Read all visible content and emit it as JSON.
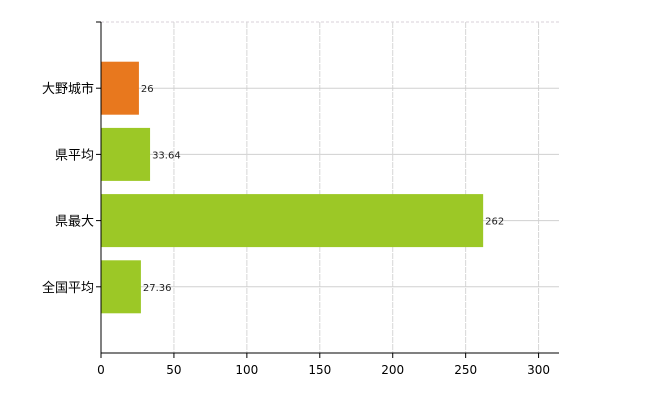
{
  "chart_data": {
    "type": "bar",
    "orientation": "horizontal",
    "categories": [
      "大野城市",
      "県平均",
      "県最大",
      "全国平均"
    ],
    "values": [
      26,
      33.64,
      262,
      27.36
    ],
    "value_labels": [
      "26",
      "33.64",
      "262",
      "27.36"
    ],
    "colors": [
      "#E8781E",
      "#9CC826",
      "#9CC826",
      "#9CC826"
    ],
    "xlim": [
      0,
      314
    ],
    "xticks": [
      0,
      50,
      100,
      150,
      200,
      250,
      300
    ],
    "xtick_labels": [
      "0",
      "50",
      "100",
      "150",
      "200",
      "250",
      "300"
    ],
    "grid": true,
    "title": "",
    "xlabel": "",
    "ylabel": ""
  }
}
